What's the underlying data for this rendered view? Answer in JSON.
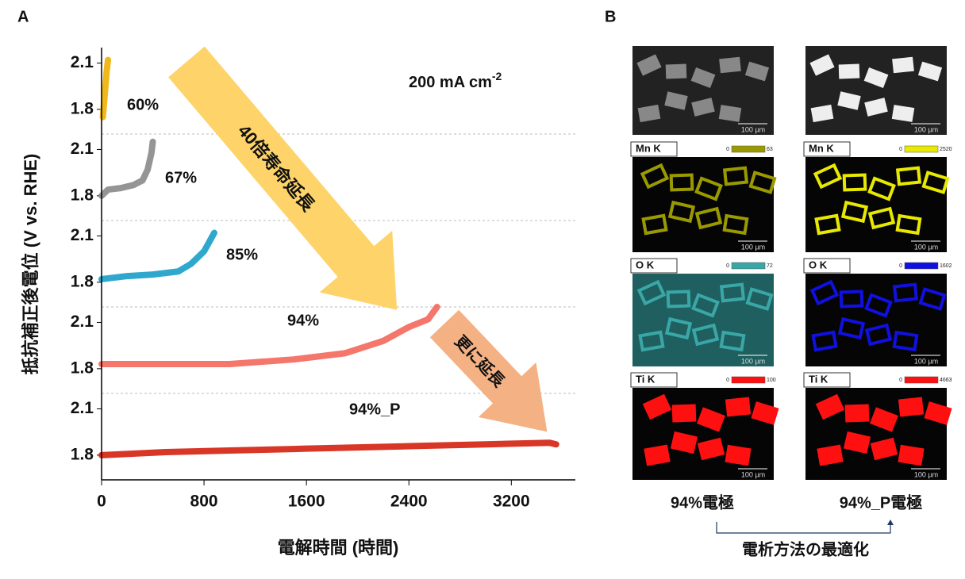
{
  "chart_data": {
    "type": "line",
    "panel_label": "A",
    "x_label": "電解時間 (時間)",
    "y_label": "抵抗補正後電位 (V vs. RHE)",
    "annotation": "200 mA cm",
    "annotation_superscript": "-2",
    "arrow_1": "40倍寿命延長",
    "arrow_2": "更に延長",
    "xlim": [
      0,
      3700
    ],
    "xticks": [
      0,
      800,
      1600,
      2400,
      3200
    ],
    "ylim": [
      1.64,
      2.2
    ],
    "yticks": [
      1.8,
      2.1
    ],
    "series": [
      {
        "name": "60%",
        "color": "#f0b000",
        "x": [
          10,
          20,
          30,
          40,
          50
        ],
        "values": [
          1.75,
          1.85,
          1.95,
          2.05,
          2.12
        ]
      },
      {
        "name": "67%",
        "color": "#8a8a8a",
        "x": [
          0,
          50,
          150,
          250,
          320,
          360,
          390,
          400
        ],
        "values": [
          1.8,
          1.84,
          1.85,
          1.87,
          1.9,
          1.97,
          2.08,
          2.15
        ]
      },
      {
        "name": "85%",
        "color": "#1a9ec8",
        "x": [
          0,
          200,
          400,
          600,
          700,
          800,
          880
        ],
        "values": [
          1.82,
          1.84,
          1.85,
          1.87,
          1.92,
          2.0,
          2.12
        ]
      },
      {
        "name": "94%",
        "color": "#f4675a",
        "x": [
          0,
          500,
          1000,
          1500,
          1900,
          2200,
          2400,
          2550,
          2620
        ],
        "values": [
          1.83,
          1.83,
          1.83,
          1.86,
          1.9,
          1.98,
          2.07,
          2.12,
          2.2
        ]
      },
      {
        "name": "94%_P",
        "color": "#d42010",
        "x": [
          0,
          500,
          1000,
          1500,
          2000,
          2500,
          3000,
          3500,
          3550
        ],
        "values": [
          1.8,
          1.82,
          1.83,
          1.84,
          1.85,
          1.86,
          1.87,
          1.88,
          1.87
        ]
      }
    ]
  },
  "panel_b": {
    "label": "B",
    "scale": "100 µm",
    "rows": [
      {
        "element": "Mn K",
        "left_range": [
          "0",
          "63"
        ],
        "right_range": [
          "0",
          "2520"
        ]
      },
      {
        "element": "O K",
        "left_range": [
          "0",
          "72"
        ],
        "right_range": [
          "0",
          "1602"
        ]
      },
      {
        "element": "Ti K",
        "left_range": [
          "0",
          "100"
        ],
        "right_range": [
          "0",
          "4663"
        ]
      }
    ],
    "left_caption": "94%電極",
    "right_caption": "94%_P電極",
    "footer": "電析方法の最適化"
  }
}
